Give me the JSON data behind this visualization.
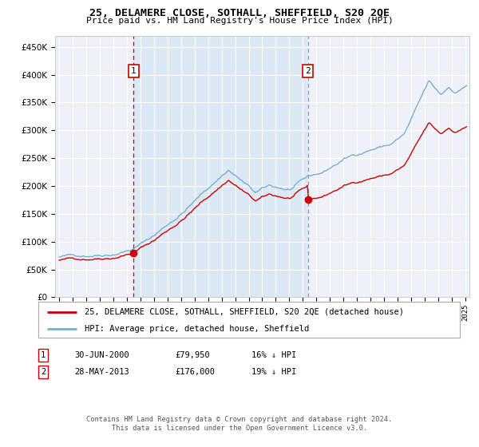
{
  "title": "25, DELAMERE CLOSE, SOTHALL, SHEFFIELD, S20 2QE",
  "subtitle": "Price paid vs. HM Land Registry's House Price Index (HPI)",
  "legend_line1": "25, DELAMERE CLOSE, SOTHALL, SHEFFIELD, S20 2QE (detached house)",
  "legend_line2": "HPI: Average price, detached house, Sheffield",
  "annotation1_label": "1",
  "annotation1_date": "30-JUN-2000",
  "annotation1_price": "£79,950",
  "annotation1_hpi": "16% ↓ HPI",
  "annotation2_label": "2",
  "annotation2_date": "28-MAY-2013",
  "annotation2_price": "£176,000",
  "annotation2_hpi": "19% ↓ HPI",
  "footer": "Contains HM Land Registry data © Crown copyright and database right 2024.\nThis data is licensed under the Open Government Licence v3.0.",
  "ylim": [
    0,
    470000
  ],
  "yticks": [
    0,
    50000,
    100000,
    150000,
    200000,
    250000,
    300000,
    350000,
    400000,
    450000
  ],
  "plot_bg": "#eef2f8",
  "red_line_color": "#cc0000",
  "blue_line_color": "#7aadd4",
  "vline1_color": "#cc0000",
  "vline2_color": "#8899bb",
  "shade_color": "#dde8f5",
  "annotation_box_border": "#cc0000",
  "sale1_x": 2000.5,
  "sale1_y": 79950,
  "sale2_x": 2013.37,
  "sale2_y": 176000,
  "xlim_left": 1994.7,
  "xlim_right": 2025.3
}
